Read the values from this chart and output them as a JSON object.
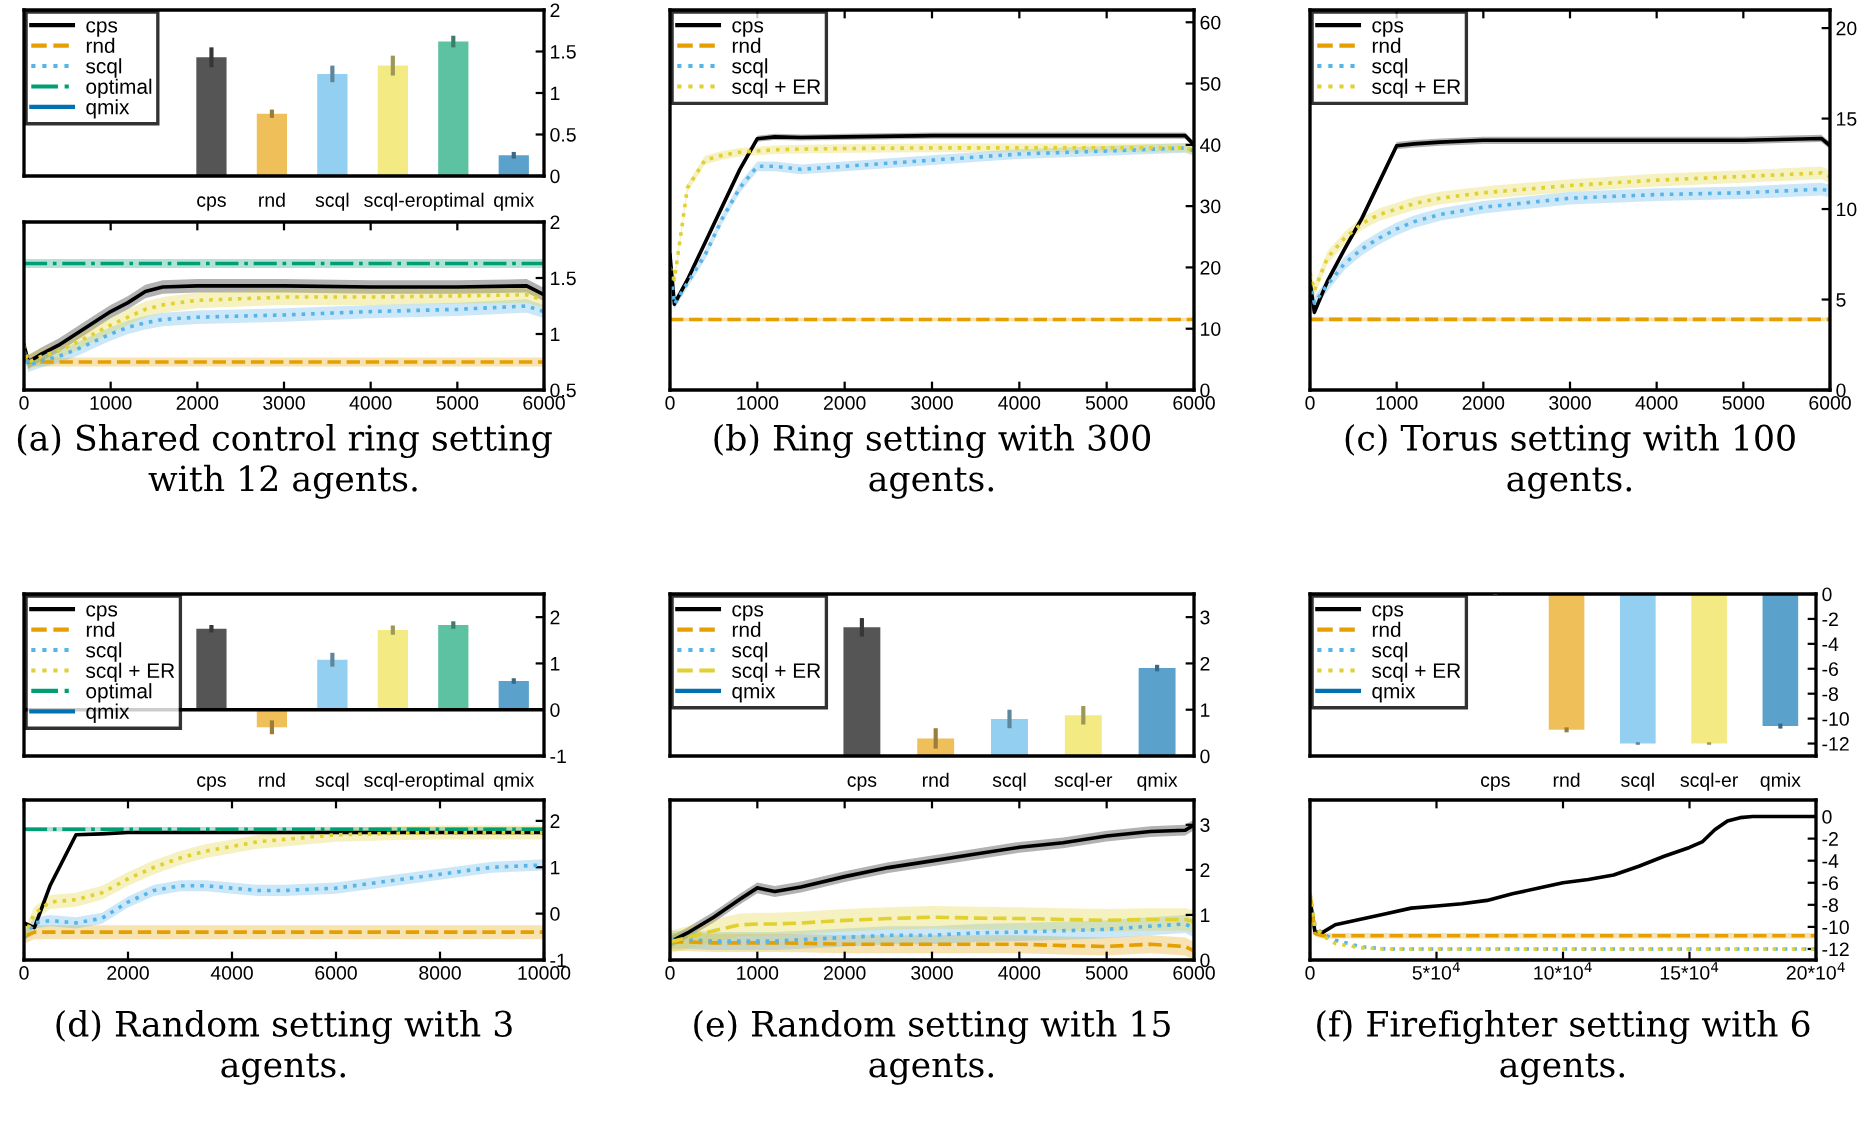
{
  "chart_data": [
    {
      "type": "bar",
      "categories": [
        "cps",
        "rnd",
        "scql",
        "scql-er",
        "optimal",
        "qmix"
      ],
      "values": [
        1.43,
        0.75,
        1.23,
        1.33,
        1.62,
        0.25
      ],
      "errors": [
        0.12,
        0.05,
        0.1,
        0.12,
        0.07,
        0.04
      ],
      "colors": [
        "#555555",
        "#efc05a",
        "#92cff0",
        "#f3ea84",
        "#5dc2a1",
        "#5aa1cc"
      ],
      "ylim": [
        0,
        2
      ],
      "yticks": [
        0,
        0.5,
        1,
        1.5,
        2
      ]
    },
    {
      "type": "line",
      "x": [
        0,
        50,
        200,
        400,
        600,
        800,
        1000,
        1200,
        1400,
        1600,
        2000,
        3000,
        4000,
        5000,
        5800,
        6000
      ],
      "xlim": [
        0,
        6000
      ],
      "xticks": [
        0,
        1000,
        2000,
        3000,
        4000,
        5000,
        6000
      ],
      "ylim": [
        0.5,
        2
      ],
      "yticks": [
        0.5,
        1,
        1.5,
        2
      ],
      "legend": "top left",
      "annotations": [
        "(a) Shared control ring setting with 12 agents."
      ],
      "series": [
        {
          "name": "cps",
          "color": "#000000",
          "line_style": "solid",
          "values": [
            0.9,
            0.75,
            0.82,
            0.9,
            1.0,
            1.1,
            1.2,
            1.28,
            1.38,
            1.42,
            1.43,
            1.43,
            1.42,
            1.42,
            1.43,
            1.35
          ],
          "lower": [
            0.84,
            0.69,
            0.76,
            0.84,
            0.94,
            1.04,
            1.14,
            1.22,
            1.32,
            1.36,
            1.37,
            1.37,
            1.36,
            1.36,
            1.37,
            1.29
          ],
          "upper": [
            0.96,
            0.81,
            0.88,
            0.96,
            1.06,
            1.16,
            1.26,
            1.34,
            1.44,
            1.48,
            1.49,
            1.49,
            1.48,
            1.48,
            1.49,
            1.41
          ]
        },
        {
          "name": "rnd",
          "color": "#e69f00",
          "line_style": "dashed",
          "values": [
            0.8,
            0.75,
            0.75,
            0.75,
            0.75,
            0.75,
            0.75,
            0.75,
            0.75,
            0.75,
            0.75,
            0.75,
            0.75,
            0.75,
            0.75,
            0.75
          ],
          "lower": [
            0.76,
            0.71,
            0.71,
            0.71,
            0.71,
            0.71,
            0.71,
            0.71,
            0.71,
            0.71,
            0.71,
            0.71,
            0.71,
            0.71,
            0.71,
            0.71
          ],
          "upper": [
            0.84,
            0.79,
            0.79,
            0.79,
            0.79,
            0.79,
            0.79,
            0.79,
            0.79,
            0.79,
            0.79,
            0.79,
            0.79,
            0.79,
            0.79,
            0.79
          ]
        },
        {
          "name": "scql",
          "color": "#56b4e9",
          "line_style": "dotted",
          "values": [
            0.85,
            0.72,
            0.76,
            0.8,
            0.86,
            0.93,
            1.0,
            1.06,
            1.1,
            1.13,
            1.15,
            1.17,
            1.2,
            1.22,
            1.25,
            1.2
          ],
          "lower": [
            0.79,
            0.66,
            0.7,
            0.74,
            0.8,
            0.87,
            0.94,
            1.0,
            1.04,
            1.07,
            1.09,
            1.11,
            1.14,
            1.16,
            1.19,
            1.14
          ],
          "upper": [
            0.91,
            0.78,
            0.82,
            0.86,
            0.92,
            0.99,
            1.06,
            1.12,
            1.16,
            1.19,
            1.21,
            1.23,
            1.26,
            1.28,
            1.31,
            1.26
          ]
        },
        {
          "color": "#e0d030",
          "line_style": "dotted",
          "values": [
            0.9,
            0.75,
            0.8,
            0.85,
            0.92,
            1.0,
            1.08,
            1.15,
            1.22,
            1.26,
            1.3,
            1.33,
            1.33,
            1.34,
            1.35,
            1.3
          ],
          "lower": [
            0.83,
            0.68,
            0.73,
            0.78,
            0.85,
            0.93,
            1.01,
            1.08,
            1.15,
            1.19,
            1.23,
            1.26,
            1.26,
            1.27,
            1.28,
            1.23
          ],
          "upper": [
            0.97,
            0.82,
            0.87,
            0.92,
            0.99,
            1.07,
            1.15,
            1.22,
            1.29,
            1.33,
            1.37,
            1.4,
            1.4,
            1.41,
            1.42,
            1.37
          ]
        },
        {
          "name": "optimal",
          "color": "#009e73",
          "line_style": "dashdot",
          "values": [
            1.63,
            1.63,
            1.63,
            1.63,
            1.63,
            1.63,
            1.63,
            1.63,
            1.63,
            1.63,
            1.63,
            1.63,
            1.63,
            1.63,
            1.63,
            1.63
          ],
          "lower": [
            1.59,
            1.59,
            1.59,
            1.59,
            1.59,
            1.59,
            1.59,
            1.59,
            1.59,
            1.59,
            1.59,
            1.59,
            1.59,
            1.59,
            1.59,
            1.59
          ],
          "upper": [
            1.67,
            1.67,
            1.67,
            1.67,
            1.67,
            1.67,
            1.67,
            1.67,
            1.67,
            1.67,
            1.67,
            1.67,
            1.67,
            1.67,
            1.67,
            1.67
          ]
        },
        {
          "name": "qmix",
          "color": "#0072b2",
          "line_style": "solid",
          "values": [
            null,
            null,
            null,
            null,
            null,
            null,
            null,
            null,
            null,
            null,
            null,
            null,
            null,
            null,
            null,
            null
          ]
        }
      ]
    },
    {
      "type": "line",
      "x": [
        0,
        50,
        200,
        400,
        600,
        800,
        1000,
        1200,
        1500,
        2000,
        3000,
        4000,
        5000,
        5900,
        6000
      ],
      "xlim": [
        0,
        6000
      ],
      "xticks": [
        0,
        1000,
        2000,
        3000,
        4000,
        5000,
        6000
      ],
      "ylim": [
        0,
        62
      ],
      "yticks": [
        0,
        10,
        20,
        30,
        40,
        50,
        60
      ],
      "legend": "top left",
      "annotations": [
        "(b) Ring setting with 300 agents."
      ],
      "series": [
        {
          "name": "cps",
          "color": "#000000",
          "line_style": "solid",
          "values": [
            22,
            14,
            18,
            24,
            30,
            36,
            41,
            41.3,
            41.2,
            41.3,
            41.5,
            41.5,
            41.5,
            41.5,
            40
          ],
          "lower": [
            21.5,
            13.5,
            17.5,
            23.5,
            29.5,
            35.5,
            40.5,
            40.8,
            40.7,
            40.8,
            41,
            41,
            41,
            41,
            39.5
          ],
          "upper": [
            22.5,
            14.5,
            18.5,
            24.5,
            30.5,
            36.5,
            41.5,
            41.8,
            41.7,
            41.8,
            42,
            42,
            42,
            42,
            40.5
          ]
        },
        {
          "name": "rnd",
          "color": "#e69f00",
          "line_style": "dashed",
          "values": [
            11.5,
            11.5,
            11.5,
            11.5,
            11.5,
            11.5,
            11.5,
            11.5,
            11.5,
            11.5,
            11.5,
            11.5,
            11.5,
            11.5,
            11.5
          ],
          "lower": [
            11.2,
            11.2,
            11.2,
            11.2,
            11.2,
            11.2,
            11.2,
            11.2,
            11.2,
            11.2,
            11.2,
            11.2,
            11.2,
            11.2,
            11.2
          ],
          "upper": [
            11.8,
            11.8,
            11.8,
            11.8,
            11.8,
            11.8,
            11.8,
            11.8,
            11.8,
            11.8,
            11.8,
            11.8,
            11.8,
            11.8,
            11.8
          ]
        },
        {
          "name": "scql",
          "color": "#56b4e9",
          "line_style": "dotted",
          "values": [
            20,
            14,
            17.5,
            22,
            28,
            33,
            36.5,
            36.5,
            36,
            36.5,
            37.5,
            38.5,
            39,
            39.5,
            39
          ],
          "lower": [
            19.2,
            13.2,
            16.7,
            21.2,
            27.2,
            32.2,
            35.7,
            35.7,
            35.2,
            35.7,
            36.7,
            37.7,
            38.2,
            38.7,
            38.2
          ],
          "upper": [
            20.8,
            14.8,
            18.3,
            22.8,
            28.8,
            33.8,
            37.3,
            37.3,
            36.8,
            37.3,
            38.3,
            39.3,
            39.8,
            40.3,
            39.8
          ]
        },
        {
          "name": "scql + ER",
          "color": "#e0d030",
          "line_style": "dotted",
          "values": [
            20,
            18,
            33,
            37.5,
            38.3,
            38.8,
            39,
            39.2,
            39.3,
            39.4,
            39.5,
            39.5,
            39.5,
            39.5,
            39
          ],
          "lower": [
            19.3,
            17.3,
            32.3,
            36.8,
            37.6,
            38.1,
            38.3,
            38.5,
            38.6,
            38.7,
            38.8,
            38.8,
            38.8,
            38.8,
            38.3
          ],
          "upper": [
            20.7,
            18.7,
            33.7,
            38.2,
            39,
            39.5,
            39.7,
            39.9,
            40,
            40.1,
            40.2,
            40.2,
            40.2,
            40.2,
            39.7
          ]
        }
      ]
    },
    {
      "type": "line",
      "x": [
        0,
        50,
        200,
        400,
        600,
        800,
        1000,
        1200,
        1500,
        2000,
        3000,
        4000,
        5000,
        5900,
        6000
      ],
      "xlim": [
        0,
        6000
      ],
      "xticks": [
        0,
        1000,
        2000,
        3000,
        4000,
        5000,
        6000
      ],
      "ylim": [
        0,
        21
      ],
      "yticks": [
        0,
        5,
        10,
        15,
        20
      ],
      "legend": "top left",
      "annotations": [
        "(c) Torus setting with 100 agents."
      ],
      "series": [
        {
          "name": "cps",
          "color": "#000000",
          "line_style": "solid",
          "values": [
            6,
            4.3,
            6,
            7.8,
            9.5,
            11.5,
            13.5,
            13.6,
            13.7,
            13.8,
            13.8,
            13.8,
            13.8,
            13.9,
            13.5
          ],
          "lower": [
            5.8,
            4.1,
            5.8,
            7.6,
            9.3,
            11.3,
            13.3,
            13.4,
            13.5,
            13.6,
            13.6,
            13.6,
            13.6,
            13.7,
            13.3
          ],
          "upper": [
            6.2,
            4.5,
            6.2,
            8,
            9.7,
            11.7,
            13.7,
            13.8,
            13.9,
            14,
            14,
            14,
            14,
            14.1,
            13.7
          ]
        },
        {
          "name": "rnd",
          "color": "#e69f00",
          "line_style": "dashed",
          "values": [
            3.9,
            3.9,
            3.9,
            3.9,
            3.9,
            3.9,
            3.9,
            3.9,
            3.9,
            3.9,
            3.9,
            3.9,
            3.9,
            3.9,
            3.9
          ],
          "lower": [
            3.8,
            3.8,
            3.8,
            3.8,
            3.8,
            3.8,
            3.8,
            3.8,
            3.8,
            3.8,
            3.8,
            3.8,
            3.8,
            3.8,
            3.8
          ],
          "upper": [
            4,
            4,
            4,
            4,
            4,
            4,
            4,
            4,
            4,
            4,
            4,
            4,
            4,
            4,
            4
          ]
        },
        {
          "name": "scql",
          "color": "#56b4e9",
          "line_style": "dotted",
          "values": [
            6,
            4.8,
            5.8,
            7,
            7.8,
            8.4,
            8.9,
            9.3,
            9.7,
            10.1,
            10.6,
            10.8,
            10.9,
            11.1,
            11
          ],
          "lower": [
            5.65,
            4.45,
            5.45,
            6.65,
            7.45,
            8.05,
            8.55,
            8.95,
            9.35,
            9.75,
            10.25,
            10.45,
            10.55,
            10.75,
            10.65
          ],
          "upper": [
            6.35,
            5.15,
            6.15,
            7.35,
            8.15,
            8.75,
            9.25,
            9.65,
            10.05,
            10.45,
            10.95,
            11.15,
            11.25,
            11.45,
            11.35
          ]
        },
        {
          "name": "scql + ER",
          "color": "#e0d030",
          "line_style": "dotted",
          "values": [
            6.5,
            5.5,
            7.3,
            8.4,
            9.2,
            9.7,
            10,
            10.3,
            10.6,
            10.9,
            11.3,
            11.6,
            11.8,
            12,
            11.8
          ],
          "lower": [
            6.15,
            5.15,
            6.95,
            8.05,
            8.85,
            9.35,
            9.65,
            9.95,
            10.25,
            10.55,
            10.95,
            11.25,
            11.45,
            11.65,
            11.45
          ],
          "upper": [
            6.85,
            5.85,
            7.65,
            8.75,
            9.55,
            10.05,
            10.35,
            10.65,
            10.95,
            11.25,
            11.65,
            11.95,
            12.15,
            12.35,
            12.15
          ]
        }
      ]
    },
    {
      "type": "bar",
      "categories": [
        "cps",
        "rnd",
        "scql",
        "scql-er",
        "optimal",
        "qmix"
      ],
      "values": [
        1.75,
        -0.38,
        1.08,
        1.72,
        1.83,
        0.62
      ],
      "errors": [
        0.08,
        0.15,
        0.15,
        0.1,
        0.08,
        0.06
      ],
      "colors": [
        "#555555",
        "#efc05a",
        "#92cff0",
        "#f3ea84",
        "#5dc2a1",
        "#5aa1cc"
      ],
      "ylim": [
        -1,
        2.5
      ],
      "yticks": [
        -1,
        0,
        1,
        2
      ],
      "ref_lines": [
        {
          "axis": "y",
          "value": 0,
          "color": "#000000"
        }
      ]
    },
    {
      "type": "line",
      "x": [
        0,
        200,
        500,
        1000,
        1500,
        2000,
        2500,
        3000,
        3500,
        4000,
        4500,
        5000,
        6000,
        7000,
        8000,
        9000,
        10000
      ],
      "xlim": [
        0,
        10000
      ],
      "xticks": [
        0,
        2000,
        4000,
        6000,
        8000,
        10000
      ],
      "ylim": [
        -1,
        2.45
      ],
      "yticks": [
        -1,
        0,
        1,
        2
      ],
      "legend": "top left",
      "annotations": [
        "(d) Random setting with 3 agents."
      ],
      "series": [
        {
          "name": "cps",
          "color": "#000000",
          "line_style": "solid",
          "values": [
            -0.2,
            -0.3,
            0.6,
            1.7,
            1.72,
            1.75,
            1.75,
            1.75,
            1.75,
            1.75,
            1.75,
            1.75,
            1.75,
            1.75,
            1.75,
            1.75,
            1.75
          ]
        },
        {
          "name": "rnd",
          "color": "#e69f00",
          "line_style": "dashed",
          "values": [
            -0.5,
            -0.4,
            -0.4,
            -0.4,
            -0.4,
            -0.4,
            -0.4,
            -0.4,
            -0.4,
            -0.4,
            -0.4,
            -0.4,
            -0.4,
            -0.4,
            -0.4,
            -0.4,
            -0.4
          ],
          "lower": [
            -0.65,
            -0.55,
            -0.55,
            -0.55,
            -0.55,
            -0.55,
            -0.55,
            -0.55,
            -0.55,
            -0.55,
            -0.55,
            -0.55,
            -0.55,
            -0.55,
            -0.55,
            -0.55,
            -0.55
          ],
          "upper": [
            -0.35,
            -0.25,
            -0.25,
            -0.25,
            -0.25,
            -0.25,
            -0.25,
            -0.25,
            -0.25,
            -0.25,
            -0.25,
            -0.25,
            -0.25,
            -0.25,
            -0.25,
            -0.25,
            -0.25
          ]
        },
        {
          "name": "scql",
          "color": "#56b4e9",
          "line_style": "dotted",
          "values": [
            -0.5,
            -0.2,
            -0.15,
            -0.2,
            -0.1,
            0.25,
            0.5,
            0.6,
            0.6,
            0.55,
            0.5,
            0.5,
            0.55,
            0.7,
            0.85,
            1.0,
            1.05
          ],
          "lower": [
            -0.62,
            -0.32,
            -0.27,
            -0.32,
            -0.22,
            0.13,
            0.38,
            0.48,
            0.48,
            0.43,
            0.38,
            0.38,
            0.43,
            0.58,
            0.73,
            0.88,
            0.93
          ],
          "upper": [
            -0.38,
            -0.08,
            -0.03,
            -0.08,
            0.02,
            0.37,
            0.62,
            0.72,
            0.72,
            0.67,
            0.62,
            0.62,
            0.67,
            0.82,
            0.97,
            1.12,
            1.17
          ]
        },
        {
          "name": "scql + ER",
          "color": "#e0d030",
          "line_style": "dotted",
          "values": [
            -0.5,
            0,
            0.25,
            0.3,
            0.45,
            0.75,
            1.0,
            1.2,
            1.35,
            1.45,
            1.55,
            1.6,
            1.7,
            1.73,
            1.75,
            1.75,
            1.75
          ],
          "lower": [
            -0.65,
            -0.15,
            0.1,
            0.15,
            0.3,
            0.6,
            0.85,
            1.05,
            1.2,
            1.3,
            1.4,
            1.45,
            1.55,
            1.58,
            1.6,
            1.6,
            1.6
          ],
          "upper": [
            -0.35,
            0.15,
            0.4,
            0.45,
            0.6,
            0.9,
            1.15,
            1.35,
            1.5,
            1.6,
            1.7,
            1.75,
            1.85,
            1.88,
            1.9,
            1.9,
            1.9
          ]
        },
        {
          "name": "optimal",
          "color": "#009e73",
          "line_style": "dashdot",
          "values": [
            1.82,
            1.82,
            1.82,
            1.82,
            1.82,
            1.82,
            1.82,
            1.82,
            1.82,
            1.82,
            1.82,
            1.82,
            1.82,
            1.82,
            1.82,
            1.82,
            1.82
          ],
          "lower": [
            1.77,
            1.77,
            1.77,
            1.77,
            1.77,
            1.77,
            1.77,
            1.77,
            1.77,
            1.77,
            1.77,
            1.77,
            1.77,
            1.77,
            1.77,
            1.77,
            1.77
          ],
          "upper": [
            1.87,
            1.87,
            1.87,
            1.87,
            1.87,
            1.87,
            1.87,
            1.87,
            1.87,
            1.87,
            1.87,
            1.87,
            1.87,
            1.87,
            1.87,
            1.87,
            1.87
          ]
        },
        {
          "name": "qmix",
          "color": "#0072b2",
          "line_style": "solid",
          "values": [
            null,
            null,
            null,
            null,
            null,
            null,
            null,
            null,
            null,
            null,
            null,
            null,
            null,
            null,
            null,
            null,
            null
          ]
        }
      ]
    },
    {
      "type": "bar",
      "categories": [
        "cps",
        "rnd",
        "scql",
        "scql-er",
        "qmix"
      ],
      "values": [
        2.78,
        0.38,
        0.8,
        0.88,
        1.9
      ],
      "errors": [
        0.2,
        0.22,
        0.2,
        0.2,
        0.07
      ],
      "colors": [
        "#555555",
        "#efc05a",
        "#92cff0",
        "#f3ea84",
        "#5aa1cc"
      ],
      "ylim": [
        0,
        3.5
      ],
      "yticks": [
        0,
        1,
        2,
        3
      ]
    },
    {
      "type": "line",
      "x": [
        0,
        200,
        500,
        800,
        1000,
        1200,
        1500,
        2000,
        2500,
        3000,
        3500,
        4000,
        4500,
        5000,
        5500,
        5900,
        6000
      ],
      "xlim": [
        0,
        6000
      ],
      "xticks": [
        0,
        1000,
        2000,
        3000,
        4000,
        5000,
        6000
      ],
      "ylim": [
        0,
        3.55
      ],
      "yticks": [
        0,
        1,
        2,
        3
      ],
      "legend": "top left",
      "annotations": [
        "(e) Random setting with 15 agents."
      ],
      "series": [
        {
          "name": "cps",
          "color": "#000000",
          "line_style": "solid",
          "values": [
            0.4,
            0.6,
            0.95,
            1.35,
            1.6,
            1.52,
            1.62,
            1.85,
            2.05,
            2.2,
            2.35,
            2.5,
            2.6,
            2.75,
            2.85,
            2.88,
            3.0
          ],
          "lower": [
            0.28,
            0.48,
            0.83,
            1.23,
            1.48,
            1.4,
            1.5,
            1.73,
            1.93,
            2.08,
            2.23,
            2.38,
            2.48,
            2.63,
            2.73,
            2.76,
            2.88
          ],
          "upper": [
            0.52,
            0.72,
            1.07,
            1.47,
            1.72,
            1.64,
            1.74,
            1.97,
            2.17,
            2.32,
            2.47,
            2.62,
            2.72,
            2.87,
            2.97,
            3.0,
            3.12
          ]
        },
        {
          "name": "rnd",
          "color": "#e69f00",
          "line_style": "dashed",
          "values": [
            0.4,
            0.4,
            0.38,
            0.38,
            0.38,
            0.38,
            0.37,
            0.35,
            0.35,
            0.35,
            0.35,
            0.35,
            0.32,
            0.3,
            0.35,
            0.3,
            0.2
          ],
          "lower": [
            0.2,
            0.2,
            0.18,
            0.18,
            0.18,
            0.18,
            0.17,
            0.15,
            0.15,
            0.15,
            0.15,
            0.15,
            0.12,
            0.1,
            0.15,
            0.1,
            0.0
          ],
          "upper": [
            0.6,
            0.6,
            0.58,
            0.58,
            0.58,
            0.58,
            0.57,
            0.55,
            0.55,
            0.55,
            0.55,
            0.55,
            0.52,
            0.5,
            0.55,
            0.5,
            0.4
          ]
        },
        {
          "name": "scql",
          "color": "#56b4e9",
          "line_style": "dotted",
          "values": [
            0.45,
            0.45,
            0.42,
            0.42,
            0.42,
            0.42,
            0.45,
            0.5,
            0.55,
            0.55,
            0.6,
            0.62,
            0.65,
            0.68,
            0.75,
            0.8,
            0.7
          ],
          "lower": [
            0.25,
            0.25,
            0.22,
            0.22,
            0.22,
            0.22,
            0.25,
            0.3,
            0.35,
            0.35,
            0.4,
            0.42,
            0.45,
            0.48,
            0.55,
            0.6,
            0.5
          ],
          "upper": [
            0.65,
            0.65,
            0.62,
            0.62,
            0.62,
            0.62,
            0.65,
            0.7,
            0.75,
            0.75,
            0.8,
            0.82,
            0.85,
            0.88,
            0.95,
            1.0,
            0.9
          ]
        },
        {
          "name": "scql + ER",
          "color": "#e0d030",
          "line_style": "dashed",
          "values": [
            0.4,
            0.5,
            0.65,
            0.78,
            0.8,
            0.8,
            0.82,
            0.88,
            0.92,
            0.95,
            0.93,
            0.92,
            0.9,
            0.88,
            0.9,
            0.9,
            0.85
          ],
          "lower": [
            0.15,
            0.25,
            0.4,
            0.53,
            0.55,
            0.55,
            0.57,
            0.63,
            0.67,
            0.7,
            0.68,
            0.67,
            0.65,
            0.63,
            0.65,
            0.65,
            0.6
          ],
          "upper": [
            0.65,
            0.75,
            0.9,
            1.03,
            1.05,
            1.05,
            1.07,
            1.13,
            1.17,
            1.2,
            1.18,
            1.17,
            1.15,
            1.13,
            1.15,
            1.15,
            1.1
          ]
        },
        {
          "name": "qmix",
          "color": "#0072b2",
          "line_style": "solid",
          "values": [
            null,
            null,
            null,
            null,
            null,
            null,
            null,
            null,
            null,
            null,
            null,
            null,
            null,
            null,
            null,
            null,
            null
          ]
        }
      ]
    },
    {
      "type": "bar",
      "categories": [
        "cps",
        "rnd",
        "scql",
        "scql-er",
        "qmix"
      ],
      "values": [
        0,
        -10.9,
        -12,
        -12,
        -10.6
      ],
      "errors": [
        0.1,
        0.2,
        0.1,
        0.1,
        0.2
      ],
      "colors": [
        "#555555",
        "#efc05a",
        "#92cff0",
        "#f3ea84",
        "#5aa1cc"
      ],
      "ylim": [
        -13,
        0
      ],
      "yticks": [
        -12,
        -10,
        -8,
        -6,
        -4,
        -2,
        0
      ]
    },
    {
      "type": "line",
      "x": [
        0,
        2000,
        5000,
        10000,
        20000,
        30000,
        40000,
        50000,
        60000,
        70000,
        80000,
        90000,
        100000,
        110000,
        120000,
        130000,
        140000,
        150000,
        155000,
        160000,
        165000,
        170000,
        175000,
        180000,
        200000
      ],
      "xlim": [
        0,
        200000
      ],
      "xticks": [
        0,
        {
          "value": 50000,
          "label": "5*10$^{4}$"
        },
        {
          "value": 100000,
          "label": "10*10$^{4}$"
        },
        {
          "value": 150000,
          "label": "15*10$^{4}$"
        },
        {
          "value": 200000,
          "label": "20*10$^{4}$"
        }
      ],
      "ylim": [
        -13,
        1.5
      ],
      "yticks": [
        -12,
        -10,
        -8,
        -6,
        -4,
        -2,
        0
      ],
      "legend": "top left",
      "annotations": [
        "(f) Firefighter setting with 6 agents."
      ],
      "series": [
        {
          "name": "cps",
          "color": "#000000",
          "line_style": "solid",
          "values": [
            -7.5,
            -10.5,
            -10.5,
            -9.8,
            -9.3,
            -8.8,
            -8.3,
            -8.1,
            -7.9,
            -7.6,
            -7.0,
            -6.5,
            -6.0,
            -5.7,
            -5.3,
            -4.5,
            -3.6,
            -2.8,
            -2.3,
            -1.2,
            -0.4,
            -0.1,
            0,
            0,
            0
          ]
        },
        {
          "name": "rnd",
          "color": "#e69f00",
          "line_style": "dashed",
          "values": [
            -7,
            -10.6,
            -10.8,
            -10.8,
            -10.8,
            -10.8,
            -10.8,
            -10.8,
            -10.8,
            -10.8,
            -10.8,
            -10.8,
            -10.8,
            -10.8,
            -10.8,
            -10.8,
            -10.8,
            -10.8,
            -10.8,
            -10.8,
            -10.8,
            -10.8,
            -10.8,
            -10.8,
            -10.8
          ],
          "lower": [
            -7.25,
            -10.85,
            -11.05,
            -11.05,
            -11.05,
            -11.05,
            -11.05,
            -11.05,
            -11.05,
            -11.05,
            -11.05,
            -11.05,
            -11.05,
            -11.05,
            -11.05,
            -11.05,
            -11.05,
            -11.05,
            -11.05,
            -11.05,
            -11.05,
            -11.05,
            -11.05,
            -11.05,
            -11.05
          ],
          "upper": [
            -6.75,
            -10.35,
            -10.55,
            -10.55,
            -10.55,
            -10.55,
            -10.55,
            -10.55,
            -10.55,
            -10.55,
            -10.55,
            -10.55,
            -10.55,
            -10.55,
            -10.55,
            -10.55,
            -10.55,
            -10.55,
            -10.55,
            -10.55,
            -10.55,
            -10.55,
            -10.55,
            -10.55,
            -10.55
          ]
        },
        {
          "name": "scql",
          "color": "#56b4e9",
          "line_style": "dotted",
          "values": [
            -7,
            -10,
            -10.6,
            -11.2,
            -11.8,
            -12,
            -12,
            -12,
            -12,
            -12,
            -12,
            -12,
            -12,
            -12,
            -12,
            -12,
            -12,
            -12,
            -12,
            -12,
            -12,
            -12,
            -12,
            -12,
            -12
          ]
        },
        {
          "name": "scql + ER",
          "color": "#e0d030",
          "line_style": "dotted",
          "values": [
            -7,
            -10,
            -10.8,
            -11.5,
            -11.9,
            -12,
            -12,
            -12,
            -12,
            -12,
            -12,
            -12,
            -12,
            -12,
            -12,
            -12,
            -12,
            -12,
            -12,
            -12,
            -12,
            -12,
            -12,
            -12,
            -12
          ]
        },
        {
          "name": "qmix",
          "color": "#0072b2",
          "line_style": "solid",
          "values": [
            null,
            null,
            null,
            null,
            null,
            null,
            null,
            null,
            null,
            null,
            null,
            null,
            null,
            null,
            null,
            null,
            null,
            null,
            null,
            null,
            null,
            null,
            null,
            null,
            null
          ]
        }
      ]
    }
  ]
}
